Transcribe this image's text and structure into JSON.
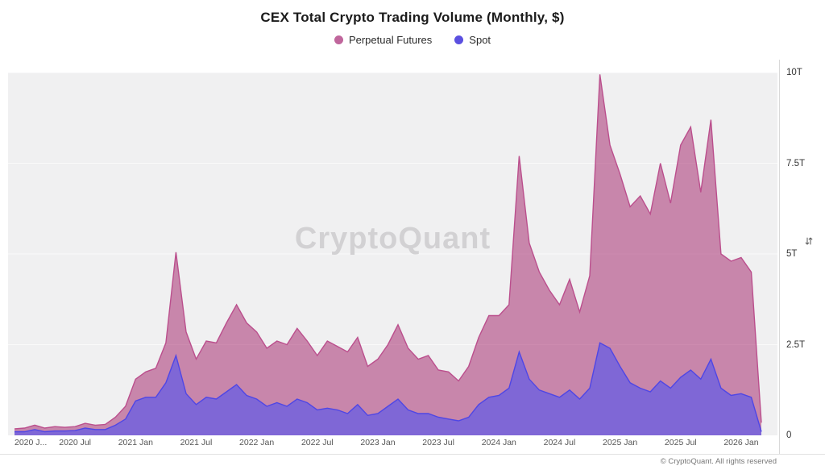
{
  "title": "CEX Total Crypto Trading Volume (Monthly, $)",
  "watermark": "CryptoQuant",
  "footer": "© CryptoQuant. All rights reserved",
  "y_axis": {
    "icon": "⇆"
  },
  "legend": [
    {
      "label": "Perpetual Futures",
      "color": "#c0669c"
    },
    {
      "label": "Spot",
      "color": "#5b50e0"
    }
  ],
  "colors": {
    "plot_background": "#f0f0f1",
    "perp_fill": "rgba(168,47,113,0.55)",
    "perp_stroke": "#bb4f8d",
    "spot_fill": "rgba(99,91,230,0.72)",
    "spot_stroke": "#4f46e5"
  },
  "chart_data": {
    "type": "area",
    "title": "CEX Total Crypto Trading Volume (Monthly, $)",
    "unit": "trillion USD",
    "x_monthly_start": "2020-01",
    "x_monthly_end": "2026-03",
    "ylim": [
      0,
      10
    ],
    "y_ticks": [
      0,
      2.5,
      5,
      7.5,
      10
    ],
    "y_tick_labels": [
      "0",
      "2.5T",
      "5T",
      "7.5T",
      "10T"
    ],
    "x_tick_indices": [
      0,
      6,
      12,
      18,
      24,
      30,
      36,
      42,
      48,
      54,
      60,
      66,
      72
    ],
    "x_tick_labels": [
      "2020 J...",
      "2020 Jul",
      "2021 Jan",
      "2021 Jul",
      "2022 Jan",
      "2022 Jul",
      "2023 Jan",
      "2023 Jul",
      "2024 Jan",
      "2024 Jul",
      "2025 Jan",
      "2025 Jul",
      "2026 Jan"
    ],
    "legend_position": "top",
    "grid": "subtle-horizontal",
    "series": [
      {
        "name": "Perpetual Futures",
        "values": [
          0.18,
          0.2,
          0.28,
          0.2,
          0.24,
          0.22,
          0.24,
          0.33,
          0.28,
          0.3,
          0.5,
          0.8,
          1.55,
          1.75,
          1.85,
          2.55,
          5.05,
          2.85,
          2.1,
          2.6,
          2.55,
          3.1,
          3.6,
          3.1,
          2.85,
          2.4,
          2.6,
          2.5,
          2.95,
          2.6,
          2.2,
          2.6,
          2.45,
          2.3,
          2.7,
          1.9,
          2.1,
          2.5,
          3.05,
          2.4,
          2.1,
          2.2,
          1.8,
          1.75,
          1.5,
          1.9,
          2.7,
          3.3,
          3.3,
          3.6,
          7.7,
          5.3,
          4.5,
          4.0,
          3.6,
          4.3,
          3.4,
          4.4,
          9.95,
          8.0,
          7.2,
          6.3,
          6.6,
          6.1,
          7.5,
          6.4,
          8.0,
          8.5,
          6.7,
          8.7,
          5.0,
          4.8,
          4.9,
          4.5,
          0.35
        ]
      },
      {
        "name": "Spot",
        "values": [
          0.1,
          0.1,
          0.16,
          0.1,
          0.12,
          0.12,
          0.13,
          0.2,
          0.16,
          0.16,
          0.28,
          0.45,
          0.95,
          1.05,
          1.05,
          1.45,
          2.2,
          1.15,
          0.85,
          1.05,
          1.0,
          1.2,
          1.4,
          1.1,
          1.0,
          0.8,
          0.9,
          0.8,
          1.0,
          0.9,
          0.7,
          0.75,
          0.7,
          0.6,
          0.85,
          0.55,
          0.6,
          0.8,
          1.0,
          0.7,
          0.6,
          0.6,
          0.5,
          0.45,
          0.4,
          0.5,
          0.85,
          1.05,
          1.1,
          1.3,
          2.3,
          1.55,
          1.25,
          1.15,
          1.05,
          1.25,
          1.0,
          1.3,
          2.55,
          2.4,
          1.9,
          1.45,
          1.3,
          1.2,
          1.5,
          1.3,
          1.6,
          1.8,
          1.55,
          2.1,
          1.3,
          1.1,
          1.15,
          1.05,
          0.1
        ]
      }
    ]
  }
}
